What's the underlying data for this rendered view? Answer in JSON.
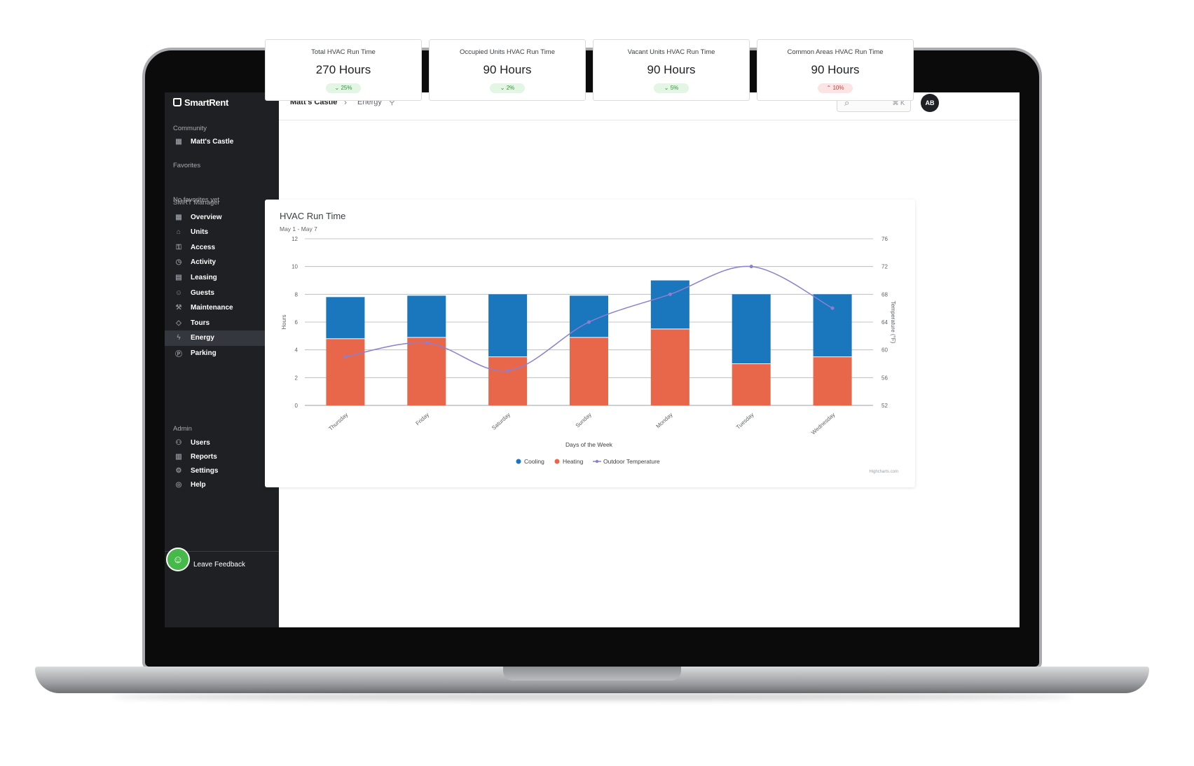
{
  "app": {
    "logo_text": "SmartRent"
  },
  "sidebar": {
    "community_label": "Community",
    "community_name": "Matt's Castle",
    "favorites_label": "Favorites",
    "favorites_empty": "No favorites yet",
    "manager_label": "SMRT Manager",
    "manager_items": [
      {
        "label": "Overview",
        "icon": "grid-icon"
      },
      {
        "label": "Units",
        "icon": "units-icon"
      },
      {
        "label": "Access",
        "icon": "key-icon"
      },
      {
        "label": "Activity",
        "icon": "clock-icon"
      },
      {
        "label": "Leasing",
        "icon": "leasing-icon"
      },
      {
        "label": "Guests",
        "icon": "guests-icon"
      },
      {
        "label": "Maintenance",
        "icon": "wrench-icon"
      },
      {
        "label": "Tours",
        "icon": "tag-icon"
      },
      {
        "label": "Energy",
        "icon": "bolt-icon"
      },
      {
        "label": "Parking",
        "icon": "parking-icon"
      }
    ],
    "active_item": "Energy",
    "admin_label": "Admin",
    "admin_items": [
      {
        "label": "Users",
        "icon": "users-icon"
      },
      {
        "label": "Reports",
        "icon": "reports-icon"
      },
      {
        "label": "Settings",
        "icon": "gear-icon"
      },
      {
        "label": "Help",
        "icon": "help-icon"
      }
    ],
    "feedback_label": "Leave Feedback"
  },
  "topbar": {
    "breadcrumb_root": "Matt's Castle",
    "breadcrumb_current": "Energy",
    "search_shortcut": "⌘ K",
    "avatar_initials": "AB"
  },
  "kpis": [
    {
      "title": "Total HVAC Run Time",
      "value": "270 Hours",
      "change": "25%",
      "direction": "down",
      "status": "good"
    },
    {
      "title": "Occupied Units HVAC Run Time",
      "value": "90 Hours",
      "change": "2%",
      "direction": "down",
      "status": "good"
    },
    {
      "title": "Vacant Units HVAC Run Time",
      "value": "90 Hours",
      "change": "5%",
      "direction": "down",
      "status": "good"
    },
    {
      "title": "Common Areas HVAC Run Time",
      "value": "90 Hours",
      "change": "10%",
      "direction": "up",
      "status": "bad"
    }
  ],
  "chart_data": {
    "type": "bar",
    "stacked": true,
    "title": "HVAC Run Time",
    "subtitle": "May 1 - May 7",
    "xlabel": "Days of the Week",
    "ylabel": "Hours",
    "ylabel_right": "Temperature (°F)",
    "categories": [
      "Thursday",
      "Friday",
      "Saturday",
      "Sunday",
      "Monday",
      "Tuesday",
      "Wednesday"
    ],
    "series": [
      {
        "name": "Heating",
        "kind": "bar",
        "color": "#e8674a",
        "values": [
          4.8,
          4.9,
          3.5,
          4.9,
          5.5,
          3.0,
          3.5
        ]
      },
      {
        "name": "Cooling",
        "kind": "bar",
        "color": "#1a76bd",
        "values": [
          3.0,
          3.0,
          4.5,
          3.0,
          3.5,
          5.0,
          4.5
        ]
      },
      {
        "name": "Outdoor Temperature",
        "kind": "line",
        "axis": "right",
        "color": "#8c7fd0",
        "values": [
          59,
          61,
          57,
          64,
          68,
          72,
          66
        ]
      }
    ],
    "legend": [
      "Cooling",
      "Heating",
      "Outdoor Temperature"
    ],
    "legend_position": "bottom-center",
    "ylim": [
      0,
      12
    ],
    "yticks": [
      0,
      2,
      4,
      6,
      8,
      10,
      12
    ],
    "ylim_right": [
      52,
      76
    ],
    "yticks_right": [
      52,
      56,
      60,
      64,
      68,
      72,
      76
    ],
    "grid": true,
    "credit": "Highcharts.com"
  }
}
